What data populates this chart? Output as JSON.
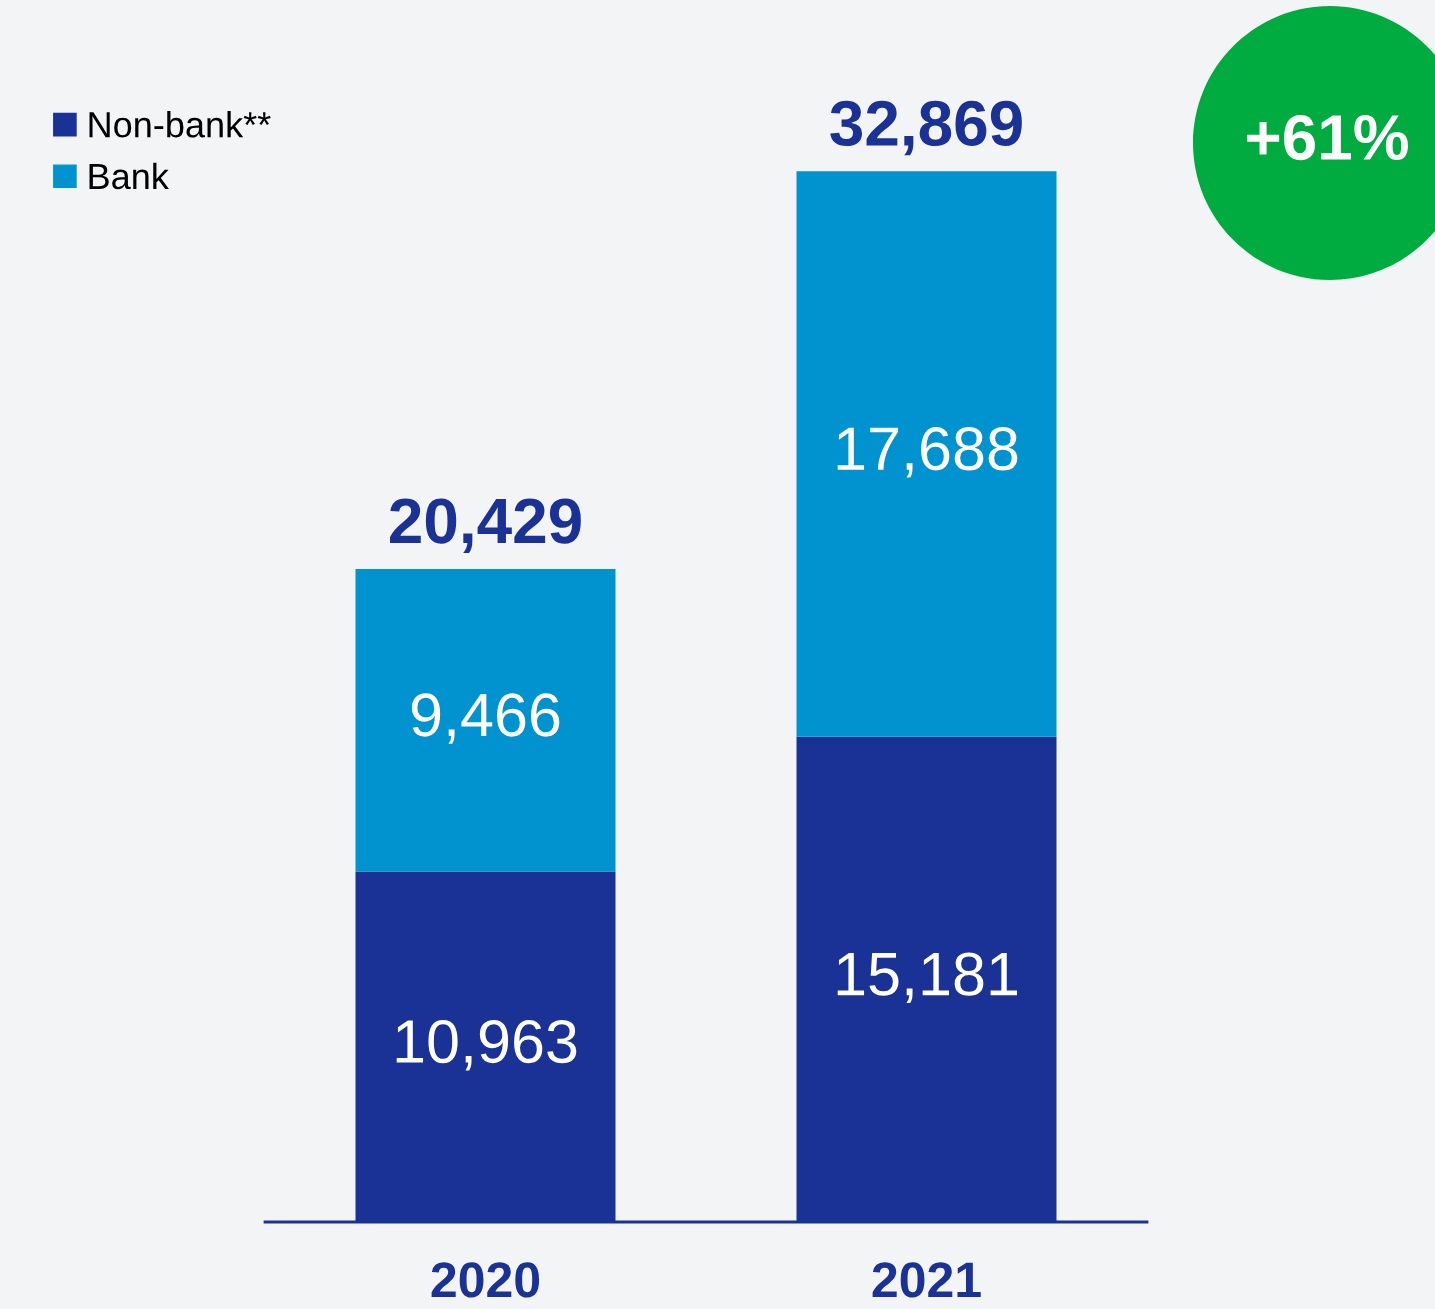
{
  "chart_data": {
    "type": "bar",
    "stacked": true,
    "categories": [
      "2020",
      "2021"
    ],
    "series": [
      {
        "name": "Non-bank**",
        "color": "#1a3296",
        "values": [
          10963,
          15181
        ],
        "value_labels": [
          "10,963",
          "15,181"
        ]
      },
      {
        "name": "Bank",
        "color": "#0093d0",
        "values": [
          9466,
          17688
        ],
        "value_labels": [
          "9,466",
          "17,688"
        ]
      }
    ],
    "totals": [
      "20,429",
      "32,869"
    ],
    "annotations": [
      "+61%"
    ],
    "legend": "top left",
    "grid": false
  }
}
